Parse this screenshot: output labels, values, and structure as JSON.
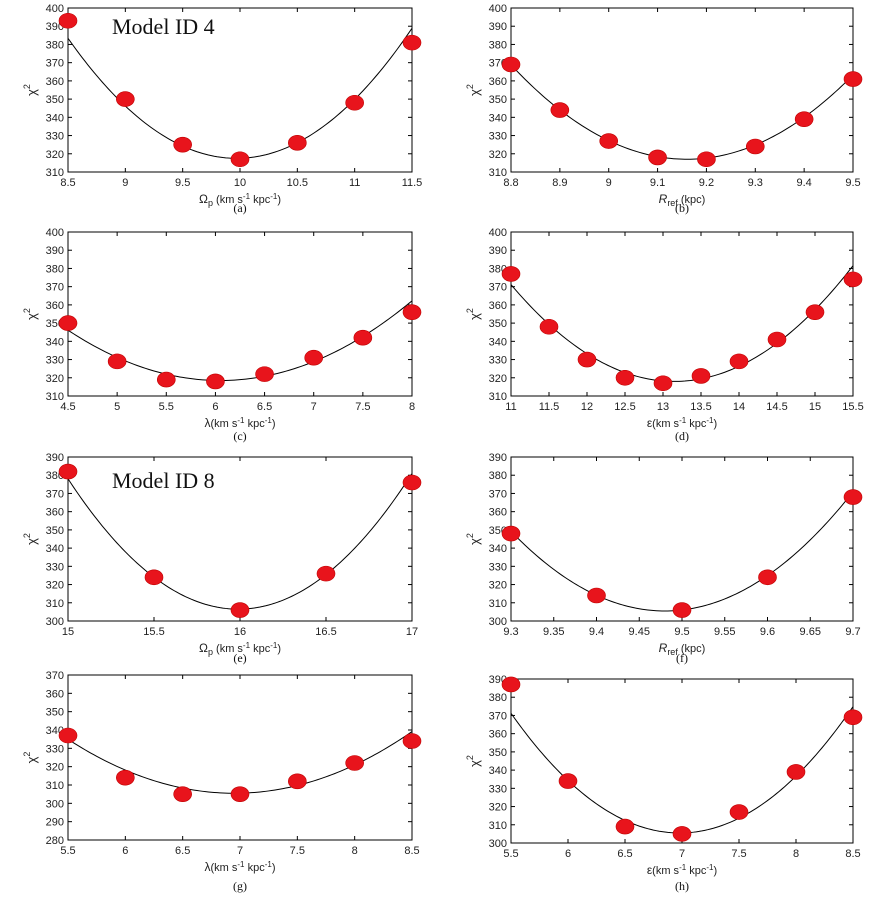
{
  "chart_data": [
    {
      "type": "scatter",
      "panel": "(a)",
      "xlabel_symbol": "Ω",
      "xlabel_sub": "p",
      "xlabel_unit": "(km s",
      "xlabel_exp": "-1",
      "xlabel_unit2": " kpc",
      "xlabel_exp2": "-1",
      "xlabel_close": ")",
      "ylabel": "χ",
      "ylabel_sup": "2",
      "annotation": "Model ID 4",
      "xlim": [
        8.5,
        11.5
      ],
      "ylim": [
        310,
        400
      ],
      "xticks": [
        8.5,
        9,
        9.5,
        10,
        10.5,
        11,
        11.5
      ],
      "xtick_labels": [
        "8.5",
        "9",
        "9.5",
        "10",
        "10.5",
        "11",
        "11.5"
      ],
      "yticks": [
        310,
        320,
        330,
        340,
        350,
        360,
        370,
        380,
        390,
        400
      ],
      "ytick_labels": [
        "310",
        "320",
        "330",
        "340",
        "350",
        "360",
        "370",
        "380",
        "390",
        "400"
      ],
      "points": [
        [
          8.5,
          393
        ],
        [
          9,
          350
        ],
        [
          9.5,
          325
        ],
        [
          10,
          317
        ],
        [
          10.5,
          326
        ],
        [
          11,
          348
        ],
        [
          11.5,
          381
        ]
      ],
      "fit": {
        "vertex_x": 9.97,
        "vertex_y": 317.5,
        "curvature": 30.5
      }
    },
    {
      "type": "scatter",
      "panel": "(b)",
      "xlabel_symbol": "R",
      "xlabel_sub": "ref",
      "xlabel_unit": "(kpc)",
      "xlabel_exp": "",
      "xlabel_unit2": "",
      "xlabel_exp2": "",
      "xlabel_close": "",
      "ylabel": "χ",
      "ylabel_sup": "2",
      "annotation": "",
      "xlim": [
        8.8,
        9.5
      ],
      "ylim": [
        310,
        400
      ],
      "xticks": [
        8.8,
        8.9,
        9,
        9.1,
        9.2,
        9.3,
        9.4,
        9.5
      ],
      "xtick_labels": [
        "8.8",
        "8.9",
        "9",
        "9.1",
        "9.2",
        "9.3",
        "9.4",
        "9.5"
      ],
      "yticks": [
        310,
        320,
        330,
        340,
        350,
        360,
        370,
        380,
        390,
        400
      ],
      "ytick_labels": [
        "310",
        "320",
        "330",
        "340",
        "350",
        "360",
        "370",
        "380",
        "390",
        "400"
      ],
      "points": [
        [
          8.8,
          369
        ],
        [
          8.9,
          344
        ],
        [
          9,
          327
        ],
        [
          9.1,
          318
        ],
        [
          9.2,
          317
        ],
        [
          9.3,
          324
        ],
        [
          9.4,
          339
        ],
        [
          9.5,
          361
        ]
      ],
      "fit": {
        "vertex_x": 9.16,
        "vertex_y": 317,
        "curvature": 400
      }
    },
    {
      "type": "scatter",
      "panel": "(c)",
      "xlabel_symbol": "λ",
      "xlabel_sub": "",
      "xlabel_unit": "(km s",
      "xlabel_exp": "-1",
      "xlabel_unit2": " kpc",
      "xlabel_exp2": "-1",
      "xlabel_close": ")",
      "ylabel": "χ",
      "ylabel_sup": "2",
      "annotation": "",
      "xlim": [
        4.5,
        8
      ],
      "ylim": [
        310,
        400
      ],
      "xticks": [
        4.5,
        5,
        5.5,
        6,
        6.5,
        7,
        7.5,
        8
      ],
      "xtick_labels": [
        "4.5",
        "5",
        "5.5",
        "6",
        "6.5",
        "7",
        "7.5",
        "8"
      ],
      "yticks": [
        310,
        320,
        330,
        340,
        350,
        360,
        370,
        380,
        390,
        400
      ],
      "ytick_labels": [
        "310",
        "320",
        "330",
        "340",
        "350",
        "360",
        "370",
        "380",
        "390",
        "400"
      ],
      "points": [
        [
          4.5,
          350
        ],
        [
          5,
          329
        ],
        [
          5.5,
          319
        ],
        [
          6,
          318
        ],
        [
          6.5,
          322
        ],
        [
          7,
          331
        ],
        [
          7.5,
          342
        ],
        [
          8,
          356
        ]
      ],
      "fit": {
        "vertex_x": 6.05,
        "vertex_y": 318.5,
        "curvature": 11.5
      }
    },
    {
      "type": "scatter",
      "panel": "(d)",
      "xlabel_symbol": "ε",
      "xlabel_sub": "",
      "xlabel_unit": "(km s",
      "xlabel_exp": "-1",
      "xlabel_unit2": " kpc",
      "xlabel_exp2": "-1",
      "xlabel_close": ")",
      "ylabel": "χ",
      "ylabel_sup": "2",
      "annotation": "",
      "xlim": [
        11,
        15.5
      ],
      "ylim": [
        310,
        400
      ],
      "xticks": [
        11,
        11.5,
        12,
        12.5,
        13,
        13.5,
        14,
        14.5,
        15,
        15.5
      ],
      "xtick_labels": [
        "11",
        "11.5",
        "12",
        "12.5",
        "13",
        "13.5",
        "14",
        "14.5",
        "15",
        "15.5"
      ],
      "yticks": [
        310,
        320,
        330,
        340,
        350,
        360,
        370,
        380,
        390,
        400
      ],
      "ytick_labels": [
        "310",
        "320",
        "330",
        "340",
        "350",
        "360",
        "370",
        "380",
        "390",
        "400"
      ],
      "points": [
        [
          11,
          377
        ],
        [
          11.5,
          348
        ],
        [
          12,
          330
        ],
        [
          12.5,
          320
        ],
        [
          13,
          317
        ],
        [
          13.5,
          321
        ],
        [
          14,
          329
        ],
        [
          14.5,
          341
        ],
        [
          15,
          356
        ],
        [
          15.5,
          374
        ]
      ],
      "fit": {
        "vertex_x": 13.15,
        "vertex_y": 318,
        "curvature": 11.5
      }
    },
    {
      "type": "scatter",
      "panel": "(e)",
      "xlabel_symbol": "Ω",
      "xlabel_sub": "p",
      "xlabel_unit": "(km s",
      "xlabel_exp": "-1",
      "xlabel_unit2": " kpc",
      "xlabel_exp2": "-1",
      "xlabel_close": ")",
      "ylabel": "χ",
      "ylabel_sup": "2",
      "annotation": "Model ID 8",
      "xlim": [
        15,
        17
      ],
      "ylim": [
        300,
        390
      ],
      "xticks": [
        15,
        15.5,
        16,
        16.5,
        17
      ],
      "xtick_labels": [
        "15",
        "15.5",
        "16",
        "16.5",
        "17"
      ],
      "yticks": [
        300,
        310,
        320,
        330,
        340,
        350,
        360,
        370,
        380,
        390
      ],
      "ytick_labels": [
        "300",
        "310",
        "320",
        "330",
        "340",
        "350",
        "360",
        "370",
        "380",
        "390"
      ],
      "points": [
        [
          15,
          382
        ],
        [
          15.5,
          324
        ],
        [
          16,
          306
        ],
        [
          16.5,
          326
        ],
        [
          17,
          376
        ]
      ],
      "fit": {
        "vertex_x": 15.99,
        "vertex_y": 306.5,
        "curvature": 73
      }
    },
    {
      "type": "scatter",
      "panel": "(f)",
      "xlabel_symbol": "R",
      "xlabel_sub": "ref",
      "xlabel_unit": "(kpc)",
      "xlabel_exp": "",
      "xlabel_unit2": "",
      "xlabel_exp2": "",
      "xlabel_close": "",
      "ylabel": "χ",
      "ylabel_sup": "2",
      "annotation": "",
      "xlim": [
        9.3,
        9.7
      ],
      "ylim": [
        300,
        390
      ],
      "xticks": [
        9.3,
        9.35,
        9.4,
        9.45,
        9.5,
        9.55,
        9.6,
        9.65,
        9.7
      ],
      "xtick_labels": [
        "9.3",
        "9.35",
        "9.4",
        "9.45",
        "9.5",
        "9.55",
        "9.6",
        "9.65",
        "9.7"
      ],
      "yticks": [
        300,
        310,
        320,
        330,
        340,
        350,
        360,
        370,
        380,
        390
      ],
      "ytick_labels": [
        "300",
        "310",
        "320",
        "330",
        "340",
        "350",
        "360",
        "370",
        "380",
        "390"
      ],
      "points": [
        [
          9.3,
          348
        ],
        [
          9.4,
          314
        ],
        [
          9.5,
          306
        ],
        [
          9.6,
          324
        ],
        [
          9.7,
          368
        ]
      ],
      "fit": {
        "vertex_x": 9.48,
        "vertex_y": 305.5,
        "curvature": 1350
      }
    },
    {
      "type": "scatter",
      "panel": "(g)",
      "xlabel_symbol": "λ",
      "xlabel_sub": "",
      "xlabel_unit": "(km s",
      "xlabel_exp": "-1",
      "xlabel_unit2": " kpc",
      "xlabel_exp2": "-1",
      "xlabel_close": ")",
      "ylabel": "χ",
      "ylabel_sup": "2",
      "annotation": "",
      "xlim": [
        5.5,
        8.5
      ],
      "ylim": [
        280,
        370
      ],
      "xticks": [
        5.5,
        6,
        6.5,
        7,
        7.5,
        8,
        8.5
      ],
      "xtick_labels": [
        "5.5",
        "6",
        "6.5",
        "7",
        "7.5",
        "8",
        "8.5"
      ],
      "yticks": [
        280,
        290,
        300,
        310,
        320,
        330,
        340,
        350,
        360,
        370
      ],
      "ytick_labels": [
        "280",
        "290",
        "300",
        "310",
        "320",
        "330",
        "340",
        "350",
        "360",
        "370"
      ],
      "points": [
        [
          5.5,
          337
        ],
        [
          6,
          314
        ],
        [
          6.5,
          305
        ],
        [
          7,
          305
        ],
        [
          7.5,
          312
        ],
        [
          8,
          322
        ],
        [
          8.5,
          334
        ]
      ],
      "fit": {
        "vertex_x": 6.95,
        "vertex_y": 305.5,
        "curvature": 14
      }
    },
    {
      "type": "scatter",
      "panel": "(h)",
      "xlabel_symbol": "ε",
      "xlabel_sub": "",
      "xlabel_unit": "(km s",
      "xlabel_exp": "-1",
      "xlabel_unit2": " kpc",
      "xlabel_exp2": "-1",
      "xlabel_close": ")",
      "ylabel": "χ",
      "ylabel_sup": "2",
      "annotation": "",
      "xlim": [
        5.5,
        8.5
      ],
      "ylim": [
        300,
        390
      ],
      "xticks": [
        5.5,
        6,
        6.5,
        7,
        7.5,
        8,
        8.5
      ],
      "xtick_labels": [
        "5.5",
        "6",
        "6.5",
        "7",
        "7.5",
        "8",
        "8.5"
      ],
      "yticks": [
        300,
        310,
        320,
        330,
        340,
        350,
        360,
        370,
        380,
        390
      ],
      "ytick_labels": [
        "300",
        "310",
        "320",
        "330",
        "340",
        "350",
        "360",
        "370",
        "380",
        "390"
      ],
      "points": [
        [
          5.5,
          387
        ],
        [
          6,
          334
        ],
        [
          6.5,
          309
        ],
        [
          7,
          305
        ],
        [
          7.5,
          317
        ],
        [
          8,
          339
        ],
        [
          8.5,
          369
        ]
      ],
      "fit": {
        "vertex_x": 6.98,
        "vertex_y": 305.5,
        "curvature": 30
      }
    }
  ]
}
